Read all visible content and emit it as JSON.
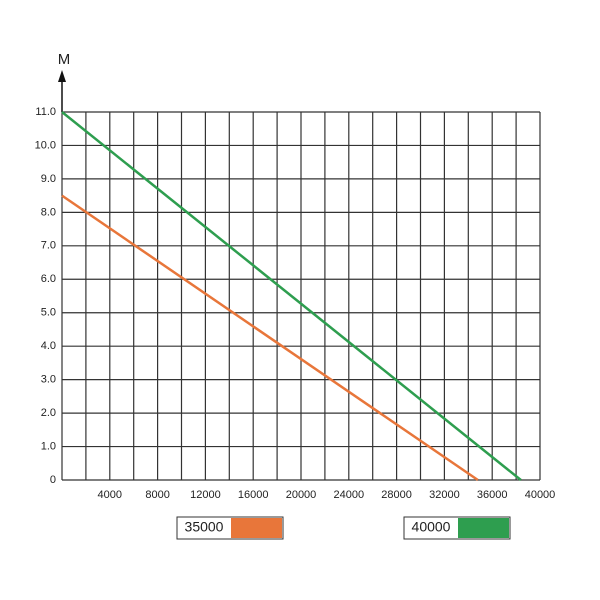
{
  "chart_data": {
    "type": "line",
    "y_label": "M",
    "xlim": [
      0,
      40000
    ],
    "xticks": [
      4000,
      8000,
      12000,
      16000,
      20000,
      24000,
      28000,
      32000,
      36000,
      40000
    ],
    "xgrid_ticks": [
      0,
      2000,
      4000,
      6000,
      8000,
      10000,
      12000,
      14000,
      16000,
      18000,
      20000,
      22000,
      24000,
      26000,
      28000,
      30000,
      32000,
      34000,
      36000,
      38000,
      40000
    ],
    "ylim": [
      0,
      11
    ],
    "yticks": [
      0,
      {
        "value": 1,
        "label": "1.0"
      },
      {
        "value": 2,
        "label": "2.0"
      },
      {
        "value": 3,
        "label": "3.0"
      },
      {
        "value": 4,
        "label": "4.0"
      },
      {
        "value": 5,
        "label": "5.0"
      },
      {
        "value": 6,
        "label": "6.0"
      },
      {
        "value": 7,
        "label": "7.0"
      },
      {
        "value": 8,
        "label": "8.0"
      },
      {
        "value": 9,
        "label": "9.0"
      },
      {
        "value": 10,
        "label": "10.0"
      },
      {
        "value": 11,
        "label": "11.0"
      }
    ],
    "grid": true,
    "series": [
      {
        "name": "35000",
        "color": "#e8763a",
        "x": [
          0,
          34800
        ],
        "values": [
          8.5,
          0
        ]
      },
      {
        "name": "40000",
        "color": "#2e9e4f",
        "x": [
          0,
          38400
        ],
        "values": [
          11,
          0
        ]
      }
    ]
  }
}
